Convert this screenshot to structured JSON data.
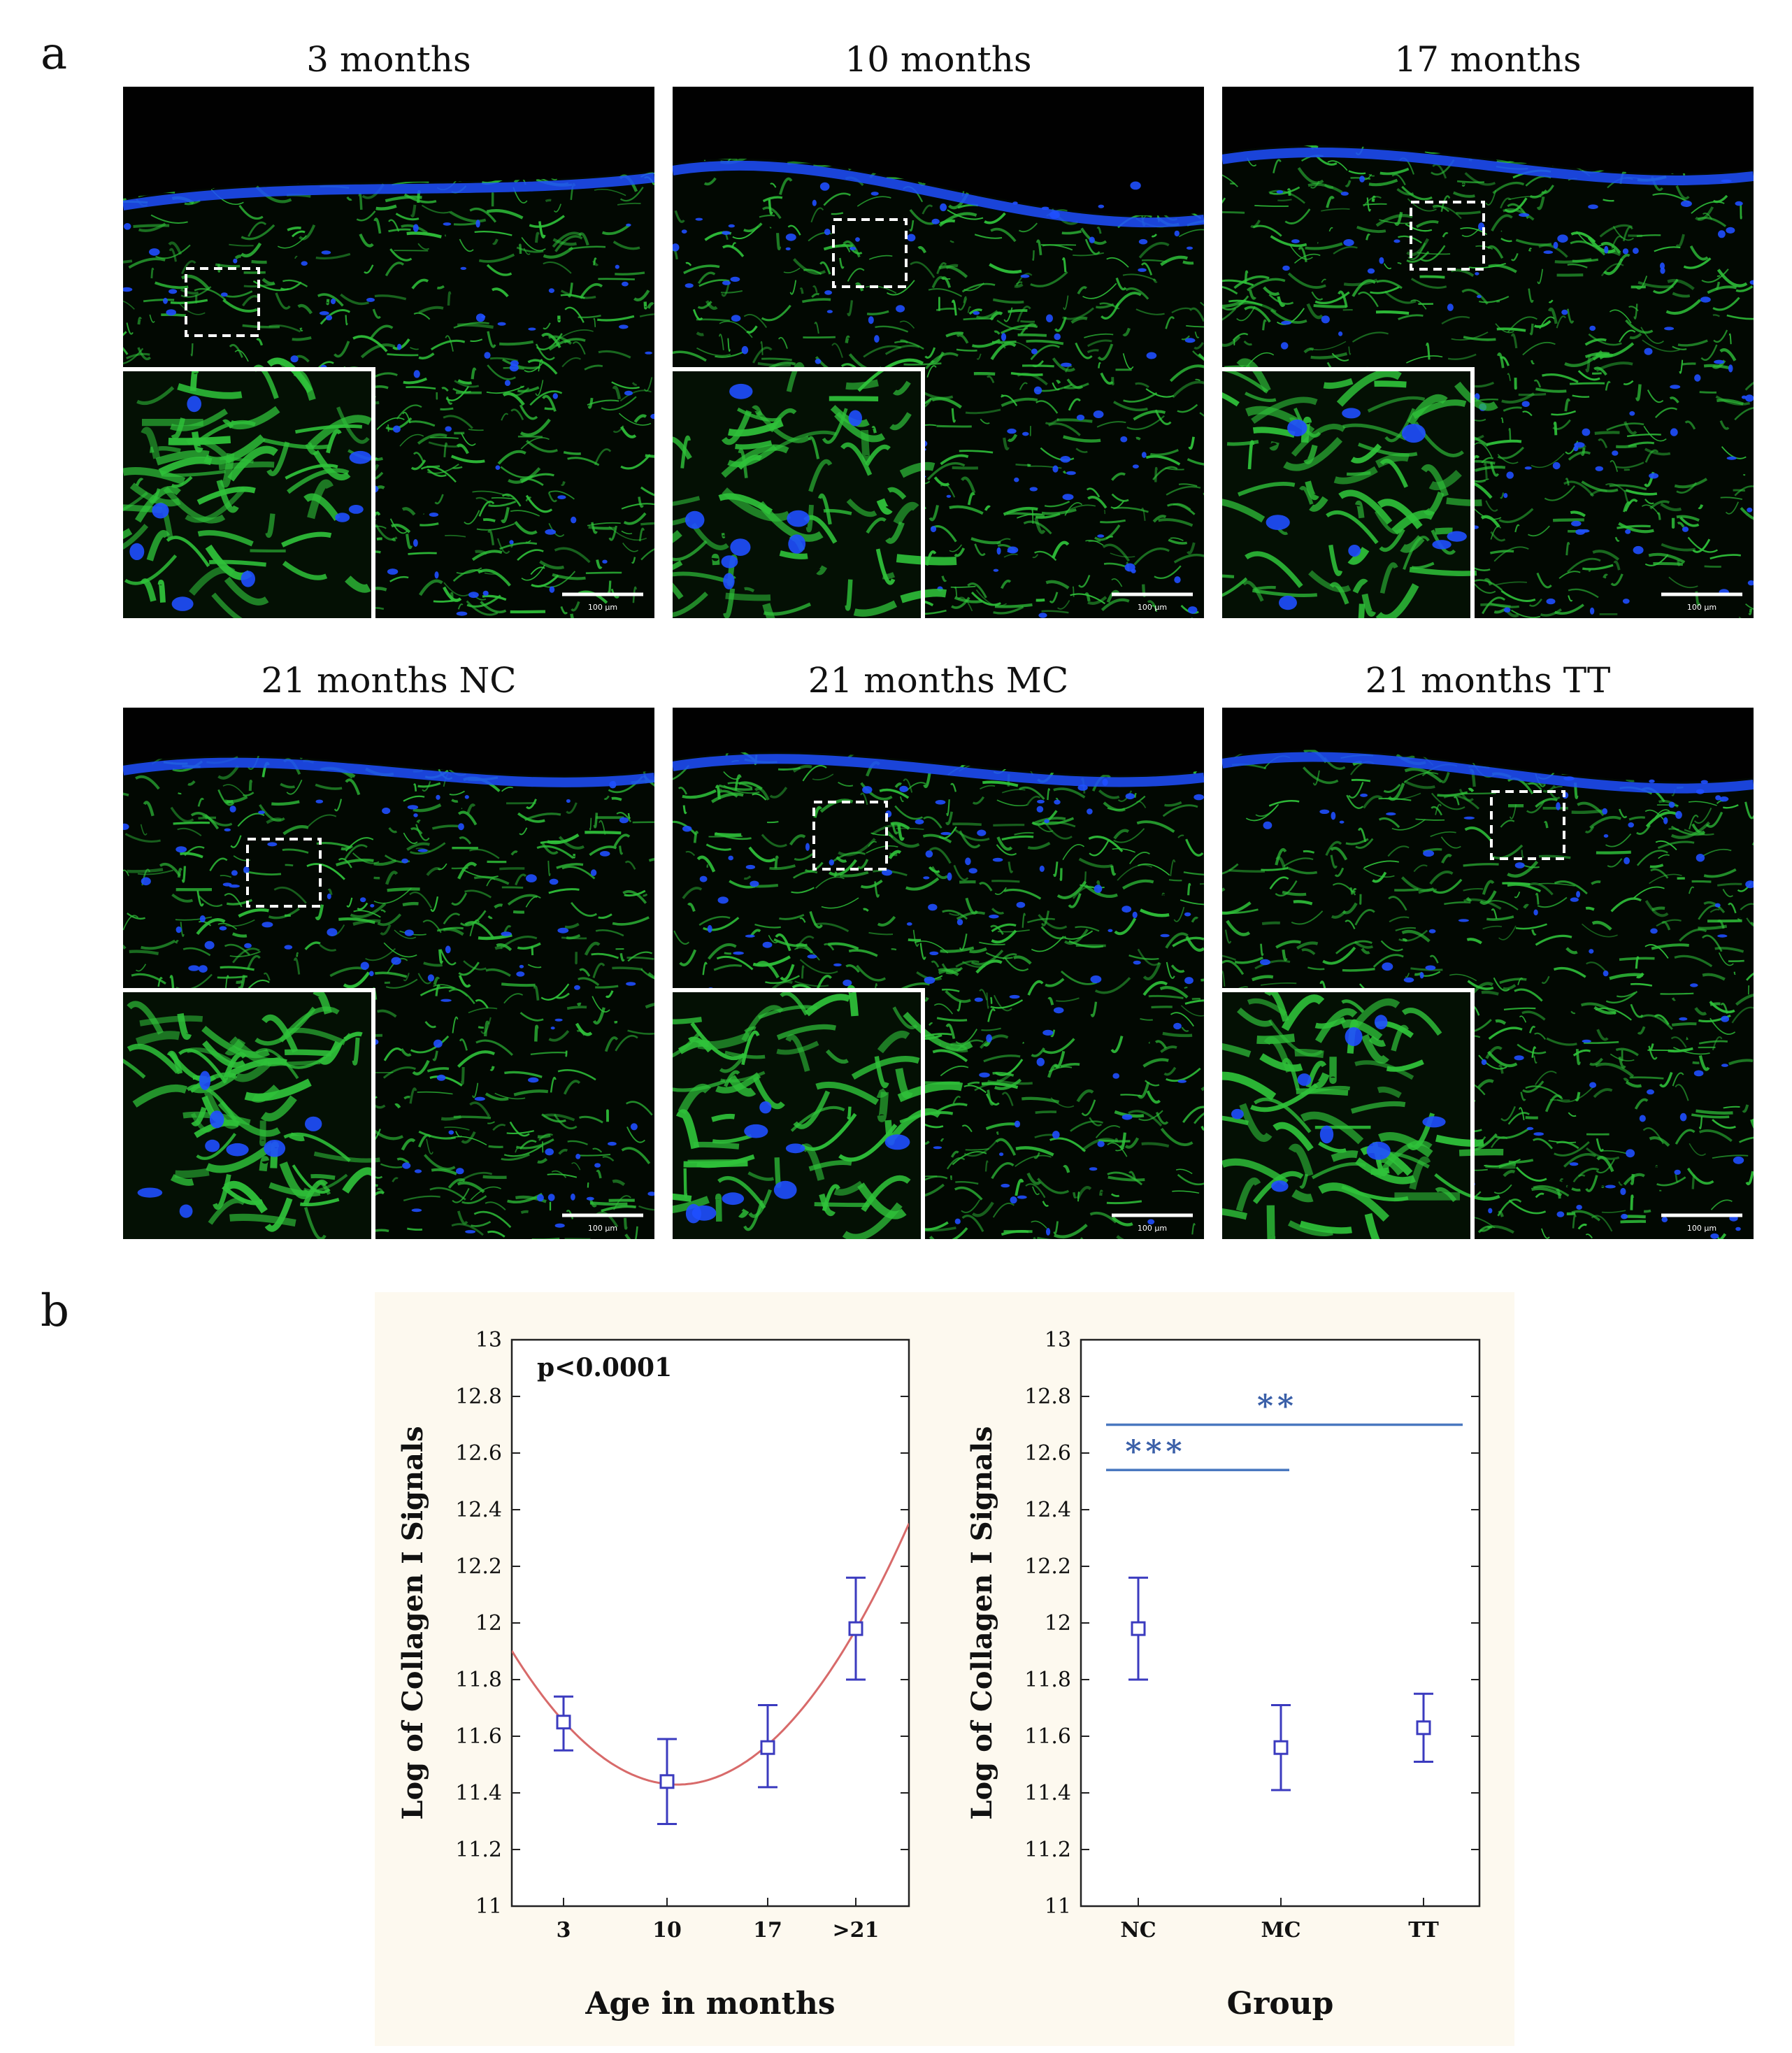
{
  "panel_a": {
    "letter": "a",
    "images": [
      {
        "title": "3 months",
        "scale_bar": "100 µm"
      },
      {
        "title": "10 months",
        "scale_bar": "100 µm"
      },
      {
        "title": "17 months",
        "scale_bar": "100 µm"
      },
      {
        "title": "21 months NC",
        "scale_bar": "100 µm"
      },
      {
        "title": "21 months MC",
        "scale_bar": "100 µm"
      },
      {
        "title": "21 months TT",
        "scale_bar": "100 µm"
      }
    ],
    "colors": {
      "collagen_stain": "#2fc23a",
      "nuclei_stain": "#1f4fff"
    }
  },
  "panel_b": {
    "letter": "b",
    "background": "#fdf9ef"
  },
  "chart_data": [
    {
      "type": "scatter",
      "x": [
        "3",
        "10",
        "17",
        ">21"
      ],
      "y": [
        11.65,
        11.44,
        11.56,
        11.98
      ],
      "error_low": [
        11.55,
        11.29,
        11.42,
        11.8
      ],
      "error_high": [
        11.74,
        11.59,
        11.71,
        12.16
      ],
      "fit_curve": "quadratic",
      "annotation": "p<0.0001",
      "xlabel": "Age in months",
      "ylabel": "Log of Collagen I Signals",
      "yticks": [
        "11",
        "11.2",
        "11.4",
        "11.6",
        "11.8",
        "12",
        "12.2",
        "12.4",
        "12.6",
        "12.8",
        "13"
      ],
      "ylim": [
        11,
        13
      ],
      "grid": false,
      "marker_color": "#3b3bbf",
      "curve_color": "#d86a6a"
    },
    {
      "type": "scatter",
      "x": [
        "NC",
        "MC",
        "TT"
      ],
      "y": [
        11.98,
        11.56,
        11.63
      ],
      "error_low": [
        11.8,
        11.41,
        11.51
      ],
      "error_high": [
        12.16,
        11.71,
        11.75
      ],
      "significance": [
        {
          "from": "NC",
          "to": "MC",
          "label": "***",
          "y": 12.54
        },
        {
          "from": "NC",
          "to": "TT",
          "label": "**",
          "y": 12.7
        }
      ],
      "xlabel": "Group",
      "ylabel": "Log of Collagen I Signals",
      "yticks": [
        "11",
        "11.2",
        "11.4",
        "11.6",
        "11.8",
        "12",
        "12.2",
        "12.4",
        "12.6",
        "12.8",
        "13"
      ],
      "ylim": [
        11,
        13
      ],
      "grid": false,
      "marker_color": "#3b3bbf",
      "bracket_color": "#4a78c0"
    }
  ]
}
